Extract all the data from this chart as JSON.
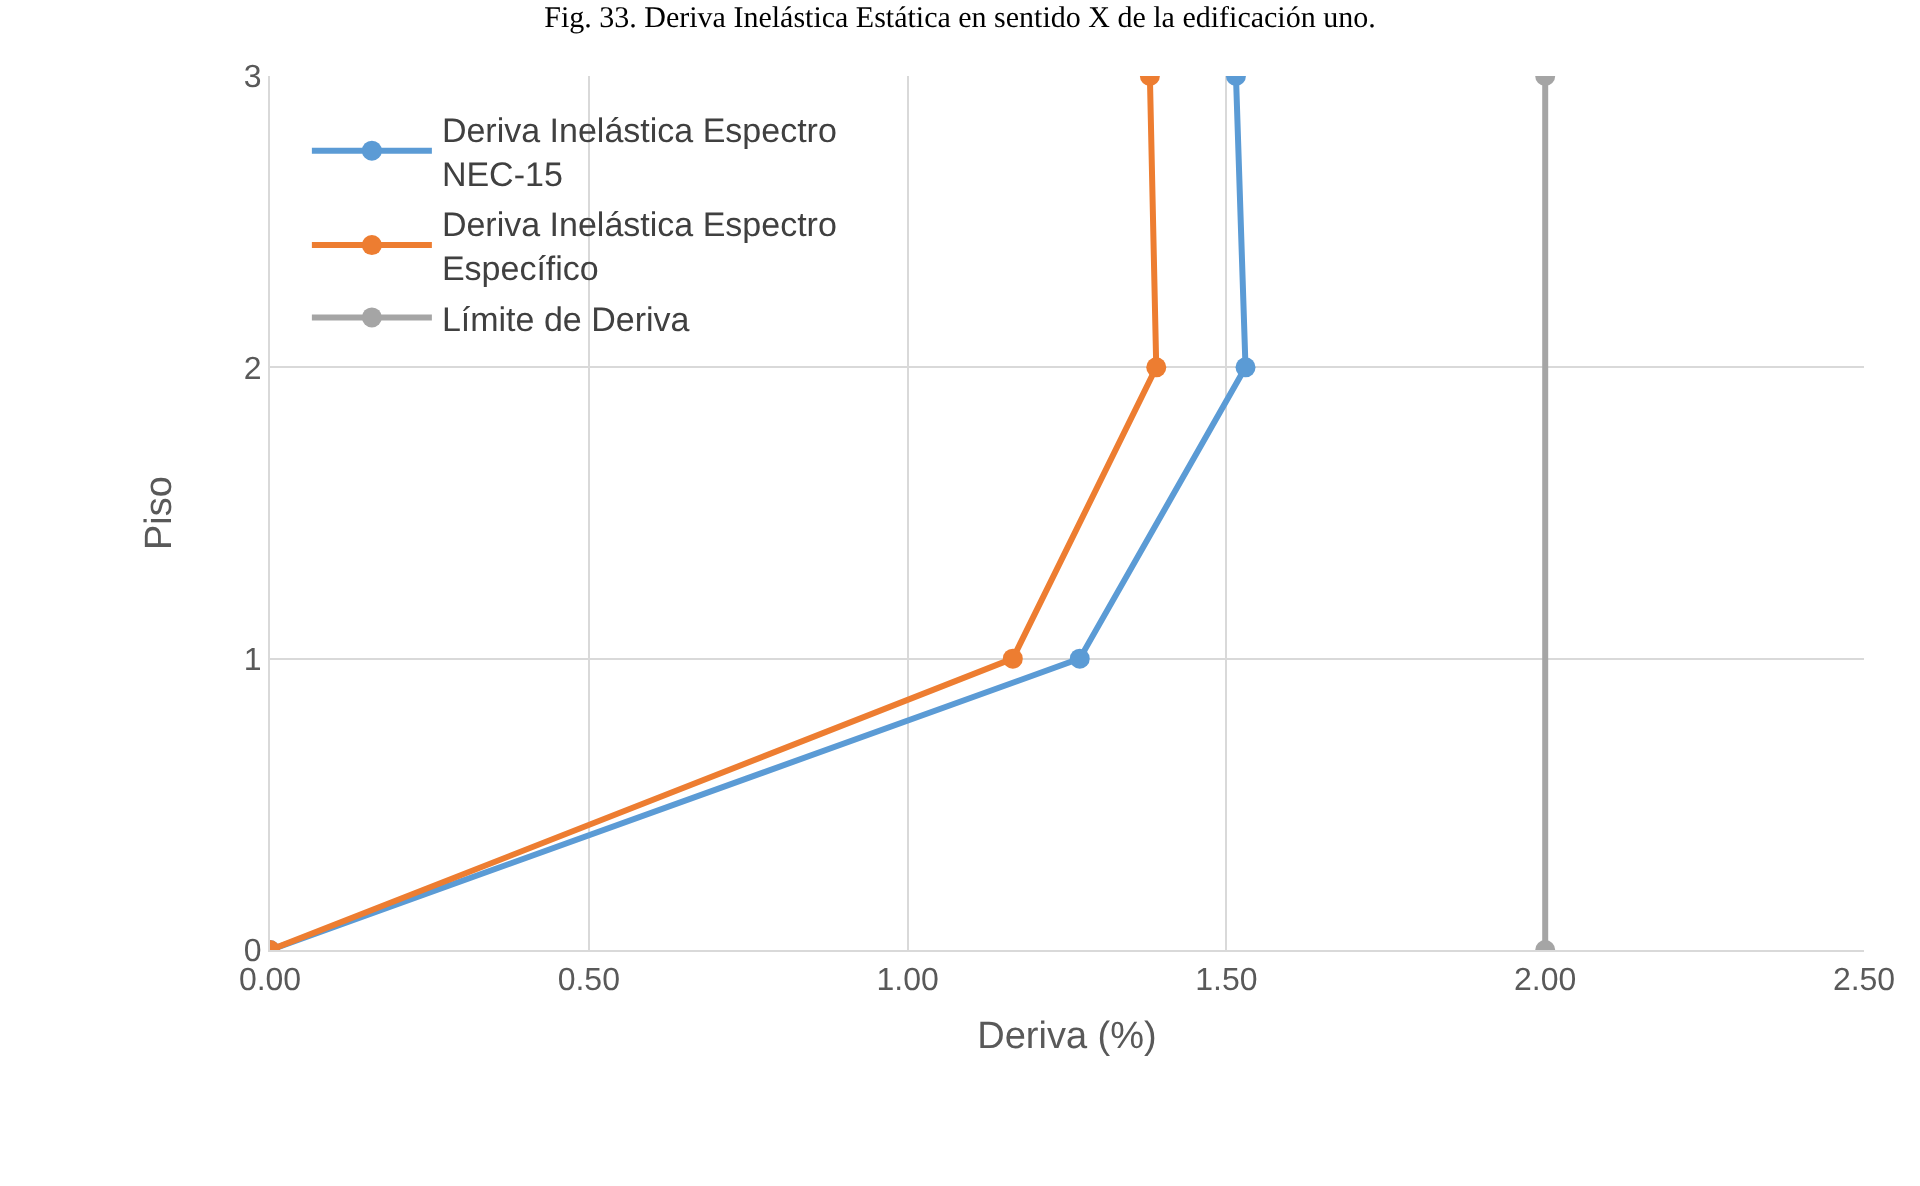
{
  "chart_data": {
    "type": "line",
    "title": "Fig. 33. Deriva Inelástica Estática en sentido X de la edificación uno.",
    "xlabel": "Deriva (%)",
    "ylabel": "Piso",
    "series": [
      {
        "name": "Deriva Inelástica Espectro NEC-15",
        "color": "#5b9bd5",
        "x": [
          0,
          1.27,
          1.53,
          1.515
        ],
        "values": [
          0,
          1,
          2,
          3
        ]
      },
      {
        "name": "Deriva Inelástica Espectro Específico",
        "color": "#ed7d31",
        "x": [
          0,
          1.165,
          1.39,
          1.38
        ],
        "values": [
          0,
          1,
          2,
          3
        ]
      },
      {
        "name": "Límite de Deriva",
        "color": "#a5a5a5",
        "x": [
          2,
          2
        ],
        "values": [
          0,
          3
        ]
      }
    ],
    "xlim": [
      0,
      2.5
    ],
    "xticks": [
      {
        "value": 0,
        "label": "0.00"
      },
      {
        "value": 0.5,
        "label": "0.50"
      },
      {
        "value": 1,
        "label": "1.00"
      },
      {
        "value": 1.5,
        "label": "1.50"
      },
      {
        "value": 2,
        "label": "2.00"
      },
      {
        "value": 2.5,
        "label": "2.50"
      }
    ],
    "ylim": [
      0,
      3
    ],
    "yticks": [
      0,
      1,
      2,
      3
    ],
    "grid": true,
    "legend": "top left",
    "marker": "circle",
    "line_style": "solid"
  }
}
